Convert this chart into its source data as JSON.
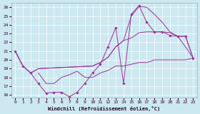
{
  "xlabel": "Windchill (Refroidissement éolien,°C)",
  "background_color": "#cce8f0",
  "line_color": "#993399",
  "xlim": [
    -0.5,
    23.5
  ],
  "ylim": [
    15.7,
    26.5
  ],
  "yticks": [
    16,
    17,
    18,
    19,
    20,
    21,
    22,
    23,
    24,
    25,
    26
  ],
  "xticks": [
    0,
    1,
    2,
    3,
    4,
    5,
    6,
    7,
    8,
    9,
    10,
    11,
    12,
    13,
    14,
    15,
    16,
    17,
    18,
    19,
    20,
    21,
    22,
    23
  ],
  "series": [
    {
      "x": [
        0,
        1,
        2,
        3,
        10,
        11,
        12,
        13,
        14,
        15,
        16,
        17,
        18,
        19,
        20,
        21,
        22,
        23
      ],
      "y": [
        21.0,
        19.3,
        18.5,
        19.0,
        19.3,
        19.7,
        20.3,
        21.5,
        22.2,
        22.5,
        23.1,
        23.2,
        23.2,
        23.2,
        23.1,
        22.7,
        21.5,
        20.2
      ],
      "marker": false
    },
    {
      "x": [
        0,
        1,
        2,
        3,
        10,
        11,
        12,
        13,
        14,
        15,
        16,
        17,
        18,
        19,
        20,
        21,
        22,
        23
      ],
      "y": [
        21.0,
        19.3,
        18.5,
        19.0,
        19.3,
        19.7,
        20.3,
        21.5,
        22.2,
        25.0,
        26.1,
        26.0,
        25.2,
        24.3,
        23.2,
        22.7,
        22.7,
        20.2
      ],
      "marker": false
    },
    {
      "x": [
        0,
        1,
        2,
        3,
        4,
        5,
        6,
        7,
        8,
        9,
        10,
        11,
        12,
        13,
        14,
        15,
        16,
        17,
        18,
        19,
        20,
        21,
        22,
        23
      ],
      "y": [
        21.0,
        19.3,
        18.5,
        17.3,
        16.2,
        16.3,
        16.3,
        15.8,
        16.3,
        17.3,
        18.5,
        19.5,
        21.5,
        23.7,
        17.3,
        25.2,
        26.2,
        24.3,
        23.2,
        23.2,
        22.8,
        22.7,
        22.7,
        20.2
      ],
      "marker": true
    },
    {
      "x": [
        3,
        4,
        5,
        6,
        7,
        8,
        9,
        10,
        11,
        12,
        13,
        14,
        15,
        16,
        17,
        18,
        19,
        20,
        21,
        22,
        23
      ],
      "y": [
        18.5,
        17.3,
        17.3,
        18.0,
        18.3,
        18.7,
        18.0,
        18.0,
        18.5,
        18.8,
        19.3,
        19.3,
        19.5,
        19.7,
        19.7,
        20.0,
        20.0,
        20.0,
        20.0,
        20.0,
        20.2
      ],
      "marker": false
    }
  ]
}
